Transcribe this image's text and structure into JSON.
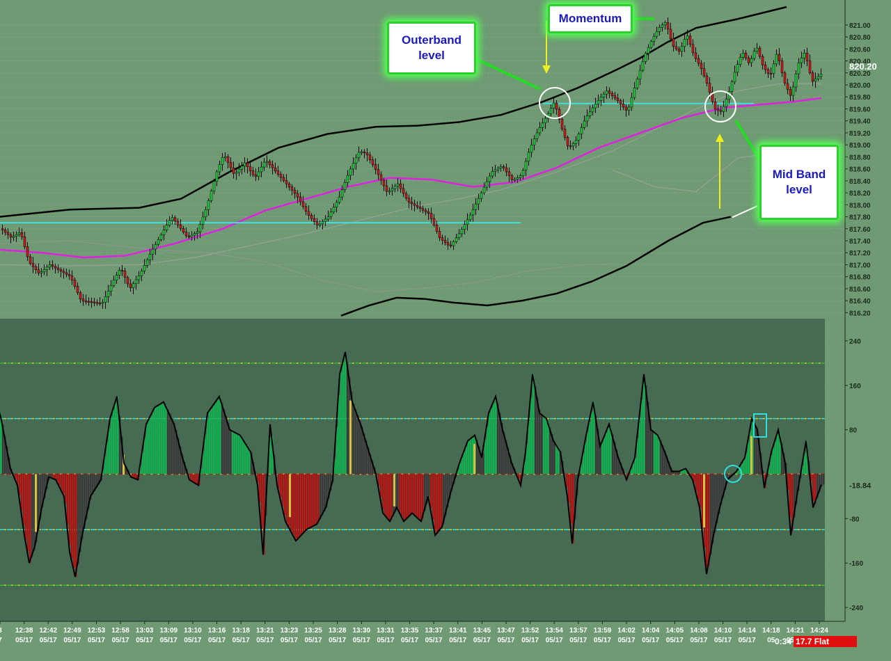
{
  "chart_data": {
    "type": "candlestick-with-oscillator",
    "price_axis": {
      "ticks": [
        "821.00",
        "820.80",
        "820.60",
        "820.40",
        "820.20",
        "820.00",
        "819.80",
        "819.60",
        "819.40",
        "819.20",
        "819.00",
        "818.80",
        "818.60",
        "818.40",
        "818.20",
        "818.00",
        "817.80",
        "817.60",
        "817.40",
        "817.20",
        "817.00",
        "816.80",
        "816.60",
        "816.40",
        "816.20"
      ],
      "range": [
        816.1,
        821.3
      ],
      "last_price": "820.20"
    },
    "oscillator_axis": {
      "ticks": [
        "240",
        "160",
        "80",
        "-80",
        "-160",
        "-240"
      ],
      "range": [
        -265,
        280
      ],
      "current_value": "-18.84",
      "levels": [
        200,
        100,
        0,
        -100,
        -200
      ]
    },
    "time_axis": {
      "times": [
        "3",
        "12:38",
        "12:42",
        "12:49",
        "12:53",
        "12:58",
        "13:03",
        "13:09",
        "13:10",
        "13:16",
        "13:18",
        "13:21",
        "13:23",
        "13:25",
        "13:28",
        "13:30",
        "13:31",
        "13:35",
        "13:37",
        "13:41",
        "13:45",
        "13:47",
        "13:52",
        "13:54",
        "13:57",
        "13:59",
        "14:02",
        "14:04",
        "14:05",
        "14:08",
        "14:10",
        "14:14",
        "14:18",
        "14:21",
        "14:24"
      ],
      "dates": [
        "7",
        "05/17",
        "05/17",
        "05/17",
        "05/17",
        "05/17",
        "05/17",
        "05/17",
        "05/17",
        "05/17",
        "05/17",
        "05/17",
        "05/17",
        "05/17",
        "05/17",
        "05/17",
        "05/17",
        "05/17",
        "05/17",
        "05/17",
        "05/17",
        "05/17",
        "05/17",
        "05/17",
        "05/17",
        "05/17",
        "05/17",
        "05/17",
        "05/17",
        "05/17",
        "05/17",
        "05/17",
        "05",
        "05/17",
        "05/17"
      ]
    },
    "bands": {
      "upper": [
        [
          0,
          817.8
        ],
        [
          100,
          817.92
        ],
        [
          200,
          817.95
        ],
        [
          260,
          818.1
        ],
        [
          330,
          818.55
        ],
        [
          400,
          818.95
        ],
        [
          470,
          819.18
        ],
        [
          540,
          819.3
        ],
        [
          600,
          819.32
        ],
        [
          660,
          819.38
        ],
        [
          720,
          819.5
        ],
        [
          780,
          819.72
        ],
        [
          830,
          819.95
        ],
        [
          880,
          820.22
        ],
        [
          920,
          820.45
        ],
        [
          960,
          820.72
        ],
        [
          1000,
          820.95
        ],
        [
          1060,
          821.1
        ],
        [
          1130,
          821.3
        ]
      ],
      "mid": [
        [
          0,
          817.25
        ],
        [
          60,
          817.2
        ],
        [
          120,
          817.12
        ],
        [
          180,
          817.15
        ],
        [
          250,
          817.35
        ],
        [
          320,
          817.6
        ],
        [
          380,
          817.9
        ],
        [
          440,
          818.1
        ],
        [
          500,
          818.3
        ],
        [
          560,
          818.45
        ],
        [
          620,
          818.42
        ],
        [
          680,
          818.3
        ],
        [
          740,
          818.38
        ],
        [
          800,
          818.62
        ],
        [
          860,
          818.95
        ],
        [
          920,
          819.2
        ],
        [
          980,
          819.45
        ],
        [
          1040,
          819.62
        ],
        [
          1100,
          819.68
        ],
        [
          1140,
          819.72
        ],
        [
          1180,
          819.78
        ]
      ],
      "lower": [
        [
          490,
          816.15
        ],
        [
          530,
          816.32
        ],
        [
          570,
          816.45
        ],
        [
          610,
          816.43
        ],
        [
          650,
          816.37
        ],
        [
          700,
          816.32
        ],
        [
          750,
          816.4
        ],
        [
          800,
          816.52
        ],
        [
          850,
          816.72
        ],
        [
          900,
          816.98
        ],
        [
          960,
          817.4
        ],
        [
          1010,
          817.7
        ],
        [
          1050,
          817.8
        ]
      ],
      "midline": [
        [
          0,
          817.35
        ],
        [
          100,
          817.4
        ],
        [
          220,
          817.25
        ],
        [
          300,
          817.2
        ],
        [
          380,
          817.05
        ],
        [
          460,
          816.75
        ],
        [
          540,
          816.55
        ],
        [
          600,
          816.6
        ],
        [
          680,
          816.7
        ],
        [
          760,
          816.9
        ],
        [
          840,
          817.0
        ],
        [
          880,
          817.02
        ]
      ],
      "upper_thin": [
        [
          0,
          817.0
        ],
        [
          100,
          816.98
        ],
        [
          200,
          817.0
        ],
        [
          280,
          817.12
        ],
        [
          360,
          817.32
        ],
        [
          440,
          817.52
        ],
        [
          520,
          817.75
        ],
        [
          600,
          817.98
        ],
        [
          660,
          818.1
        ],
        [
          720,
          818.25
        ],
        [
          800,
          818.55
        ],
        [
          880,
          818.9
        ],
        [
          940,
          819.25
        ],
        [
          1000,
          819.6
        ],
        [
          1060,
          819.9
        ],
        [
          1120,
          820.02
        ],
        [
          1180,
          820.02
        ]
      ],
      "mid_thin": [
        [
          880,
          818.58
        ],
        [
          940,
          818.3
        ],
        [
          1000,
          818.22
        ],
        [
          1060,
          818.78
        ],
        [
          1100,
          818.85
        ]
      ],
      "pink_value_label": "820.20"
    },
    "levels": [
      {
        "price": 817.7,
        "x_start_data": 0,
        "x_end_data": 748
      },
      {
        "price": 819.69,
        "x_start_data": 780,
        "x_end_data": 1083
      }
    ],
    "price_path": [
      [
        0,
        817.6
      ],
      [
        15,
        817.45
      ],
      [
        28,
        817.55
      ],
      [
        40,
        817.05
      ],
      [
        55,
        816.85
      ],
      [
        70,
        817.0
      ],
      [
        85,
        816.9
      ],
      [
        100,
        816.8
      ],
      [
        115,
        816.4
      ],
      [
        130,
        816.38
      ],
      [
        145,
        816.35
      ],
      [
        160,
        816.7
      ],
      [
        172,
        816.95
      ],
      [
        185,
        816.6
      ],
      [
        200,
        816.85
      ],
      [
        215,
        817.2
      ],
      [
        230,
        817.5
      ],
      [
        245,
        817.8
      ],
      [
        255,
        817.65
      ],
      [
        268,
        817.45
      ],
      [
        282,
        817.55
      ],
      [
        295,
        817.95
      ],
      [
        310,
        818.55
      ],
      [
        320,
        818.85
      ],
      [
        335,
        818.5
      ],
      [
        350,
        818.7
      ],
      [
        365,
        818.45
      ],
      [
        380,
        818.75
      ],
      [
        395,
        818.55
      ],
      [
        410,
        818.35
      ],
      [
        425,
        818.15
      ],
      [
        440,
        817.85
      ],
      [
        455,
        817.65
      ],
      [
        470,
        817.8
      ],
      [
        485,
        818.1
      ],
      [
        500,
        818.55
      ],
      [
        515,
        818.9
      ],
      [
        525,
        818.85
      ],
      [
        540,
        818.55
      ],
      [
        555,
        818.2
      ],
      [
        570,
        818.35
      ],
      [
        585,
        818.05
      ],
      [
        600,
        817.95
      ],
      [
        615,
        817.85
      ],
      [
        630,
        817.45
      ],
      [
        645,
        817.3
      ],
      [
        660,
        817.55
      ],
      [
        675,
        817.85
      ],
      [
        690,
        818.2
      ],
      [
        705,
        818.55
      ],
      [
        720,
        818.65
      ],
      [
        735,
        818.4
      ],
      [
        748,
        818.5
      ],
      [
        760,
        818.95
      ],
      [
        772,
        819.25
      ],
      [
        785,
        819.5
      ],
      [
        795,
        819.72
      ],
      [
        805,
        819.3
      ],
      [
        815,
        818.95
      ],
      [
        825,
        819.05
      ],
      [
        840,
        819.45
      ],
      [
        855,
        819.7
      ],
      [
        870,
        819.9
      ],
      [
        885,
        819.75
      ],
      [
        900,
        819.55
      ],
      [
        910,
        819.95
      ],
      [
        925,
        820.5
      ],
      [
        935,
        820.75
      ],
      [
        945,
        820.95
      ],
      [
        955,
        821.05
      ],
      [
        965,
        820.65
      ],
      [
        975,
        820.55
      ],
      [
        985,
        820.85
      ],
      [
        995,
        820.5
      ],
      [
        1005,
        820.3
      ],
      [
        1015,
        820.0
      ],
      [
        1025,
        819.6
      ],
      [
        1035,
        819.55
      ],
      [
        1045,
        819.85
      ],
      [
        1055,
        820.25
      ],
      [
        1065,
        820.55
      ],
      [
        1075,
        820.35
      ],
      [
        1085,
        820.65
      ],
      [
        1095,
        820.3
      ],
      [
        1105,
        820.15
      ],
      [
        1115,
        820.55
      ],
      [
        1125,
        820.05
      ],
      [
        1135,
        819.8
      ],
      [
        1145,
        820.35
      ],
      [
        1155,
        820.55
      ],
      [
        1165,
        820.05
      ],
      [
        1180,
        820.2
      ]
    ],
    "oscillator": [
      [
        0,
        110
      ],
      [
        15,
        10
      ],
      [
        25,
        -20
      ],
      [
        35,
        -110
      ],
      [
        42,
        -160
      ],
      [
        50,
        -130
      ],
      [
        60,
        -60
      ],
      [
        70,
        -5
      ],
      [
        80,
        -10
      ],
      [
        92,
        -40
      ],
      [
        100,
        -140
      ],
      [
        108,
        -185
      ],
      [
        118,
        -110
      ],
      [
        130,
        -40
      ],
      [
        145,
        -10
      ],
      [
        158,
        100
      ],
      [
        168,
        140
      ],
      [
        178,
        20
      ],
      [
        188,
        -5
      ],
      [
        198,
        -10
      ],
      [
        210,
        90
      ],
      [
        222,
        120
      ],
      [
        235,
        130
      ],
      [
        250,
        90
      ],
      [
        262,
        30
      ],
      [
        272,
        -10
      ],
      [
        285,
        -20
      ],
      [
        298,
        110
      ],
      [
        315,
        140
      ],
      [
        330,
        80
      ],
      [
        345,
        70
      ],
      [
        360,
        40
      ],
      [
        370,
        -20
      ],
      [
        378,
        -145
      ],
      [
        388,
        90
      ],
      [
        398,
        -20
      ],
      [
        410,
        -85
      ],
      [
        425,
        -120
      ],
      [
        440,
        -100
      ],
      [
        455,
        -90
      ],
      [
        468,
        -60
      ],
      [
        478,
        -10
      ],
      [
        488,
        180
      ],
      [
        496,
        220
      ],
      [
        506,
        130
      ],
      [
        518,
        90
      ],
      [
        530,
        40
      ],
      [
        540,
        0
      ],
      [
        550,
        -70
      ],
      [
        560,
        -85
      ],
      [
        570,
        -60
      ],
      [
        580,
        -85
      ],
      [
        592,
        -70
      ],
      [
        605,
        -85
      ],
      [
        615,
        -40
      ],
      [
        625,
        -110
      ],
      [
        635,
        -95
      ],
      [
        648,
        -30
      ],
      [
        660,
        20
      ],
      [
        672,
        60
      ],
      [
        682,
        70
      ],
      [
        692,
        30
      ],
      [
        702,
        110
      ],
      [
        712,
        140
      ],
      [
        722,
        80
      ],
      [
        735,
        20
      ],
      [
        748,
        -20
      ],
      [
        755,
        40
      ],
      [
        765,
        180
      ],
      [
        775,
        110
      ],
      [
        785,
        100
      ],
      [
        795,
        60
      ],
      [
        805,
        40
      ],
      [
        815,
        -40
      ],
      [
        822,
        -125
      ],
      [
        830,
        -10
      ],
      [
        842,
        70
      ],
      [
        852,
        130
      ],
      [
        862,
        50
      ],
      [
        875,
        90
      ],
      [
        888,
        30
      ],
      [
        900,
        -10
      ],
      [
        912,
        30
      ],
      [
        925,
        180
      ],
      [
        935,
        80
      ],
      [
        945,
        70
      ],
      [
        955,
        40
      ],
      [
        965,
        5
      ],
      [
        975,
        5
      ],
      [
        985,
        10
      ],
      [
        995,
        -10
      ],
      [
        1005,
        -60
      ],
      [
        1015,
        -180
      ],
      [
        1025,
        -110
      ],
      [
        1035,
        -55
      ],
      [
        1045,
        -10
      ],
      [
        1058,
        5
      ],
      [
        1070,
        30
      ],
      [
        1080,
        100
      ],
      [
        1088,
        80
      ],
      [
        1098,
        -25
      ],
      [
        1108,
        40
      ],
      [
        1118,
        80
      ],
      [
        1128,
        20
      ],
      [
        1136,
        -110
      ],
      [
        1146,
        -30
      ],
      [
        1158,
        60
      ],
      [
        1168,
        -60
      ],
      [
        1180,
        -18.84
      ]
    ]
  },
  "annotations": {
    "outerband": "Outerband\nlevel",
    "momentum": "Momentum",
    "midband": "Mid Band\nlevel"
  },
  "status_bar": {
    "timer": "0:34",
    "flat": "17.7  Flat"
  },
  "colors": {
    "background": "#6f9a74",
    "oscillator_panel": "#476a53",
    "up_candle": "#1fcc3a",
    "down_candle": "#cc1a1a",
    "band_black": "#000000",
    "mid_band_magenta": "#e020e0",
    "level_cyan": "#40e0e0",
    "osc_green": "#10b050",
    "osc_red": "#b01010",
    "osc_dark": "#3a3a3a",
    "osc_yellow": "#d8c040"
  }
}
